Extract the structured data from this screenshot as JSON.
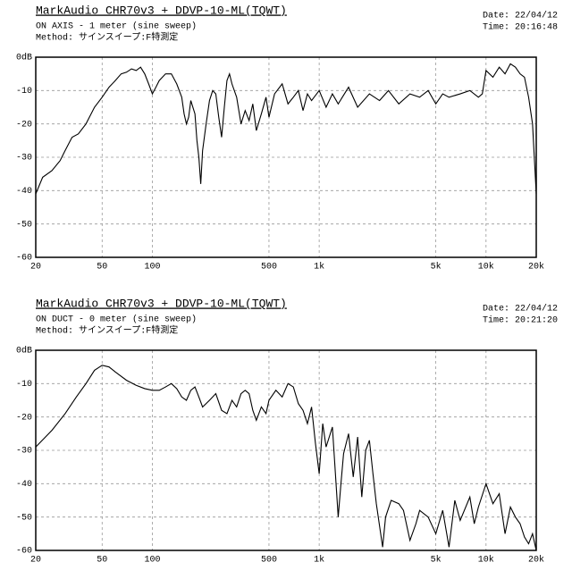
{
  "chart_data": [
    {
      "type": "line",
      "title": "MarkAudio CHR70v3 + DDVP-10-ML(TQWT)",
      "subtitle": "ON AXIS - 1 meter  (sine sweep)",
      "method": "Method: サインスイープ:F特測定",
      "date": "Date: 22/04/12",
      "time": "Time: 20:16:48",
      "xscale": "log",
      "grid": true,
      "color": "#000000",
      "xlim": [
        20,
        20000
      ],
      "ylim": [
        -60,
        0
      ],
      "xticks": [
        20,
        50,
        100,
        500,
        {
          "value": 1000,
          "label": "1k"
        },
        {
          "value": 5000,
          "label": "5k"
        },
        {
          "value": 10000,
          "label": "10k"
        },
        {
          "value": 20000,
          "label": "20k"
        }
      ],
      "yticks": [
        {
          "value": 0,
          "label": "0dB"
        },
        -10,
        -20,
        -30,
        -40,
        -50,
        -60
      ],
      "x": [
        20,
        22,
        25,
        28,
        30,
        33,
        36,
        40,
        45,
        50,
        55,
        60,
        65,
        70,
        75,
        80,
        85,
        90,
        95,
        100,
        105,
        110,
        120,
        130,
        140,
        150,
        155,
        160,
        165,
        170,
        180,
        185,
        190,
        195,
        200,
        210,
        220,
        230,
        240,
        250,
        260,
        270,
        280,
        290,
        300,
        320,
        340,
        360,
        380,
        400,
        420,
        450,
        480,
        500,
        540,
        600,
        650,
        700,
        750,
        800,
        850,
        900,
        1000,
        1100,
        1200,
        1300,
        1500,
        1700,
        2000,
        2300,
        2600,
        3000,
        3500,
        4000,
        4500,
        5000,
        5500,
        6000,
        7000,
        8000,
        9000,
        9500,
        10000,
        11000,
        12000,
        13000,
        14000,
        15000,
        16000,
        17000,
        18000,
        19000,
        20000
      ],
      "values": [
        -41,
        -36,
        -34,
        -31,
        -28,
        -24,
        -23,
        -20,
        -15,
        -12,
        -9,
        -7,
        -5,
        -4.5,
        -3.5,
        -4,
        -3,
        -5,
        -8,
        -11,
        -9,
        -7,
        -5,
        -5,
        -8,
        -12,
        -17,
        -20,
        -18,
        -13,
        -17,
        -25,
        -30,
        -38,
        -28,
        -20,
        -13,
        -10,
        -11,
        -18,
        -24,
        -15,
        -7,
        -5,
        -8,
        -12,
        -20,
        -16,
        -19,
        -14,
        -22,
        -17,
        -12,
        -18,
        -11,
        -8,
        -14,
        -12,
        -10,
        -16,
        -11,
        -13,
        -10,
        -15,
        -11,
        -14,
        -9,
        -15,
        -11,
        -13,
        -10,
        -14,
        -11,
        -12,
        -10,
        -14,
        -11,
        -12,
        -11,
        -10,
        -12,
        -11,
        -4,
        -6,
        -3,
        -5,
        -2,
        -3,
        -5,
        -6,
        -12,
        -20,
        -41
      ]
    },
    {
      "type": "line",
      "title": "MarkAudio CHR70v3 + DDVP-10-ML(TQWT)",
      "subtitle": "ON DUCT - 0 meter  (sine sweep)",
      "method": "Method: サインスイープ:F特測定",
      "date": "Date: 22/04/12",
      "time": "Time: 20:21:20",
      "xscale": "log",
      "grid": true,
      "color": "#000000",
      "xlim": [
        20,
        20000
      ],
      "ylim": [
        -60,
        0
      ],
      "xticks": [
        20,
        50,
        100,
        500,
        {
          "value": 1000,
          "label": "1k"
        },
        {
          "value": 5000,
          "label": "5k"
        },
        {
          "value": 10000,
          "label": "10k"
        },
        {
          "value": 20000,
          "label": "20k"
        }
      ],
      "yticks": [
        {
          "value": 0,
          "label": "0dB"
        },
        -10,
        -20,
        -30,
        -40,
        -50,
        -60
      ],
      "x": [
        20,
        25,
        30,
        35,
        40,
        45,
        50,
        55,
        60,
        70,
        80,
        90,
        100,
        110,
        120,
        130,
        140,
        150,
        160,
        170,
        180,
        190,
        200,
        220,
        240,
        260,
        280,
        300,
        320,
        340,
        360,
        380,
        400,
        420,
        450,
        480,
        500,
        550,
        600,
        650,
        700,
        750,
        800,
        850,
        900,
        950,
        1000,
        1050,
        1100,
        1200,
        1300,
        1350,
        1400,
        1500,
        1600,
        1700,
        1800,
        1900,
        2000,
        2100,
        2200,
        2400,
        2500,
        2700,
        3000,
        3200,
        3500,
        3800,
        4000,
        4500,
        5000,
        5500,
        6000,
        6500,
        7000,
        8000,
        8500,
        9000,
        10000,
        11000,
        12000,
        13000,
        14000,
        15000,
        16000,
        17000,
        18000,
        19000,
        20000
      ],
      "values": [
        -29,
        -24,
        -19,
        -14,
        -10,
        -6,
        -4.5,
        -5,
        -6.5,
        -9,
        -10.5,
        -11.5,
        -12,
        -12,
        -11,
        -10,
        -11.5,
        -14,
        -15,
        -12,
        -11,
        -14,
        -17,
        -15,
        -13,
        -18,
        -19,
        -15,
        -17,
        -13,
        -12,
        -13,
        -18,
        -21,
        -17,
        -19,
        -15,
        -12,
        -14,
        -10,
        -11,
        -16,
        -18,
        -22,
        -17,
        -28,
        -37,
        -22,
        -29,
        -23,
        -50,
        -40,
        -31,
        -25,
        -38,
        -26,
        -44,
        -30,
        -27,
        -37,
        -46,
        -59,
        -50,
        -45,
        -46,
        -48,
        -57,
        -52,
        -48,
        -50,
        -55,
        -48,
        -59,
        -45,
        -51,
        -44,
        -52,
        -47,
        -40,
        -46,
        -43,
        -55,
        -47,
        -50,
        -52,
        -56,
        -58,
        -55,
        -60
      ]
    }
  ]
}
